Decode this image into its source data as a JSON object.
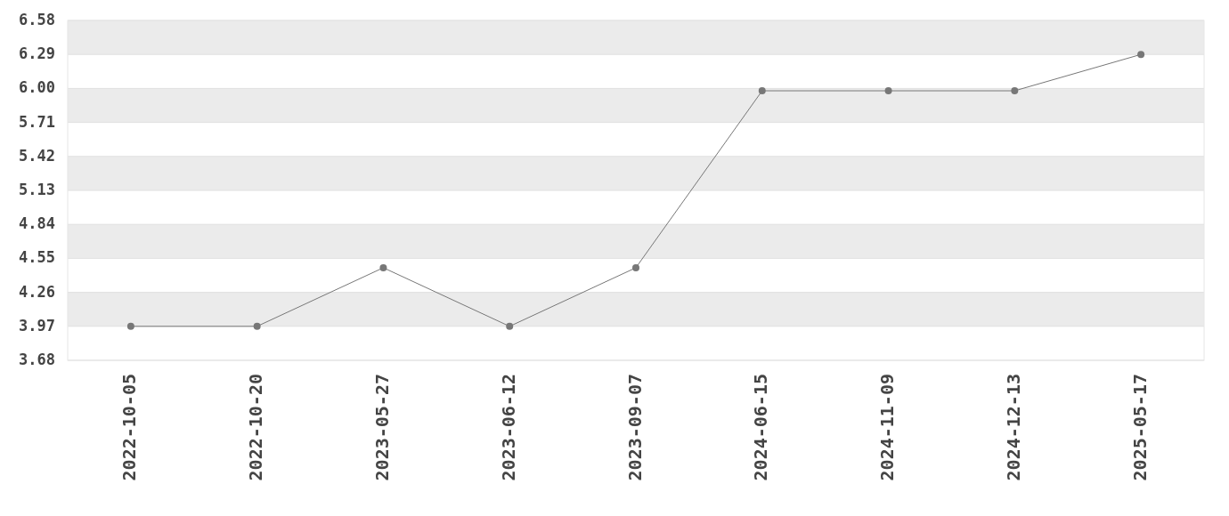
{
  "chart_data": {
    "type": "line",
    "categories": [
      "2022-10-05",
      "2022-10-20",
      "2023-05-27",
      "2023-06-12",
      "2023-09-07",
      "2024-06-15",
      "2024-11-09",
      "2024-12-13",
      "2025-05-17"
    ],
    "series": [
      {
        "color": "#777777",
        "values": [
          3.97,
          3.97,
          4.47,
          3.97,
          4.47,
          5.98,
          5.98,
          5.98,
          6.29
        ]
      }
    ],
    "ylim": [
      3.68,
      6.58
    ],
    "yticks": [
      3.68,
      {
        "value": 3.97,
        "label": "3.97"
      },
      {
        "value": 4.26,
        "label": "4.26"
      },
      {
        "value": 4.55,
        "label": "4.55"
      },
      {
        "value": 4.84,
        "label": "4.84"
      },
      {
        "value": 5.13,
        "label": "5.13"
      },
      {
        "value": 5.42,
        "label": "5.42"
      },
      {
        "value": 5.71,
        "label": "5.71"
      },
      {
        "value": 6.0,
        "label": "6.00"
      },
      {
        "value": 6.29,
        "label": "6.29"
      },
      {
        "value": 6.58,
        "label": "6.58"
      }
    ],
    "grid": "y",
    "marker": "circle",
    "line_style": "solid"
  }
}
